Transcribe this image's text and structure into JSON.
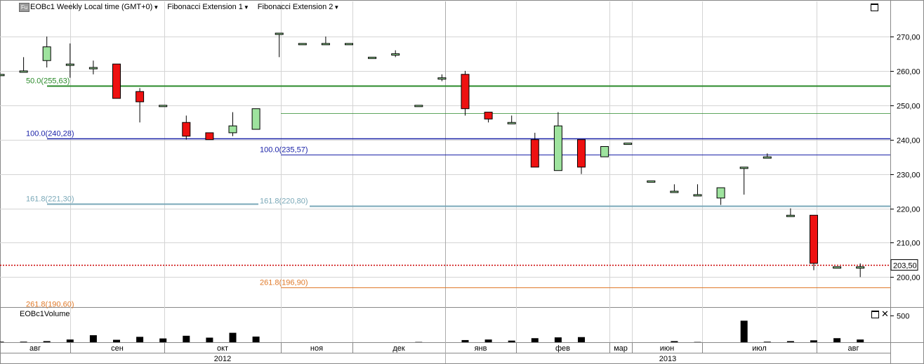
{
  "header": {
    "instrument_badge": "Fu",
    "title": "EOBc1 Weekly Local time (GMT+0)",
    "indicators": [
      "Fibonacci Extension 1",
      "Fibonacci Extension 2"
    ]
  },
  "volume_panel": {
    "title": "EOBc1Volume"
  },
  "colors": {
    "up_candle": "#9ee39e",
    "down_candle": "#ee1111",
    "fib_50": "#2a8a2a",
    "fib_100": "#1a22a8",
    "fib_161": "#7aa8b8",
    "fib_261": "#e07a2a",
    "last_price_line": "#cc0000",
    "grid": "#d4d4d4"
  },
  "chart_data": [
    {
      "type": "candlestick",
      "title": "EOBc1 Weekly Local time (GMT+0)",
      "ylim": [
        186,
        278
      ],
      "y_ticks": [
        "200,00",
        "210,00",
        "220,00",
        "230,00",
        "240,00",
        "250,00",
        "260,00",
        "270,00"
      ],
      "last_price": "203,50",
      "month_labels": [
        "авг",
        "сен",
        "окт",
        "ноя",
        "дек",
        "янв",
        "фев",
        "мар",
        "июн",
        "июл",
        "авг"
      ],
      "year_labels": [
        "2012",
        "2013"
      ],
      "candles": [
        {
          "o": 259,
          "h": 259,
          "l": 259,
          "c": 259
        },
        {
          "o": 260,
          "h": 264,
          "l": 260,
          "c": 260
        },
        {
          "o": 263,
          "h": 270,
          "l": 261,
          "c": 267
        },
        {
          "o": 262,
          "h": 268,
          "l": 258,
          "c": 262
        },
        {
          "o": 261,
          "h": 263,
          "l": 259,
          "c": 261
        },
        {
          "o": 262,
          "h": 262,
          "l": 252,
          "c": 252
        },
        {
          "o": 254,
          "h": 255,
          "l": 245,
          "c": 251
        },
        {
          "o": 250,
          "h": 250,
          "l": 250,
          "c": 250
        },
        {
          "o": 245,
          "h": 247,
          "l": 240,
          "c": 241
        },
        {
          "o": 242,
          "h": 242,
          "l": 240,
          "c": 240
        },
        {
          "o": 242,
          "h": 248,
          "l": 241,
          "c": 244
        },
        {
          "o": 243,
          "h": 249,
          "l": 243,
          "c": 249
        },
        {
          "o": 271,
          "h": 271,
          "l": 264,
          "c": 271
        },
        {
          "o": 268,
          "h": 268,
          "l": 268,
          "c": 268
        },
        {
          "o": 268,
          "h": 270,
          "l": 268,
          "c": 268
        },
        {
          "o": 268,
          "h": 268,
          "l": 268,
          "c": 268
        },
        {
          "o": 264,
          "h": 264,
          "l": 264,
          "c": 264
        },
        {
          "o": 265,
          "h": 266,
          "l": 264,
          "c": 265
        },
        {
          "o": 250,
          "h": 250,
          "l": 250,
          "c": 250
        },
        {
          "o": 258,
          "h": 259,
          "l": 257,
          "c": 258
        },
        {
          "o": 259,
          "h": 260,
          "l": 247,
          "c": 249
        },
        {
          "o": 248,
          "h": 248,
          "l": 245,
          "c": 246
        },
        {
          "o": 245,
          "h": 247,
          "l": 245,
          "c": 245
        },
        {
          "o": 240,
          "h": 242,
          "l": 232,
          "c": 232
        },
        {
          "o": 231,
          "h": 248,
          "l": 231,
          "c": 244
        },
        {
          "o": 240,
          "h": 240,
          "l": 230,
          "c": 232
        },
        {
          "o": 235,
          "h": 238,
          "l": 235,
          "c": 238
        },
        {
          "o": 239,
          "h": 239,
          "l": 239,
          "c": 239
        },
        {
          "o": 228,
          "h": 228,
          "l": 228,
          "c": 228
        },
        {
          "o": 225,
          "h": 227,
          "l": 225,
          "c": 225
        },
        {
          "o": 224,
          "h": 227,
          "l": 224,
          "c": 224
        },
        {
          "o": 223,
          "h": 226,
          "l": 221,
          "c": 226
        },
        {
          "o": 232,
          "h": 232,
          "l": 224,
          "c": 232
        },
        {
          "o": 235,
          "h": 236,
          "l": 235,
          "c": 235
        },
        {
          "o": 218,
          "h": 220,
          "l": 218,
          "c": 218
        },
        {
          "o": 218,
          "h": 218,
          "l": 202,
          "c": 204
        },
        {
          "o": 203,
          "h": 203,
          "l": 203,
          "c": 203
        },
        {
          "o": 203,
          "h": 204,
          "l": 200,
          "c": 203
        }
      ],
      "fib_levels": [
        {
          "label": "50.0(255,63)",
          "value": 255.63
        },
        {
          "label": "100.0(240,28)",
          "value": 240.28
        },
        {
          "label": "100.0(235,57)",
          "value": 235.57
        },
        {
          "label": "161.8(221,30)",
          "value": 221.3
        },
        {
          "label": "161.8(220,80)",
          "value": 220.8
        },
        {
          "label": "261.8(196,90)",
          "value": 196.9
        },
        {
          "label": "261.8(190,60)",
          "value": 190.6
        }
      ]
    },
    {
      "type": "bar",
      "title": "EOBc1Volume",
      "y_ticks": [
        "500"
      ],
      "ylim": [
        0,
        640
      ],
      "values": [
        10,
        10,
        20,
        50,
        130,
        45,
        100,
        70,
        120,
        85,
        175,
        105,
        0,
        0,
        0,
        0,
        0,
        0,
        5,
        0,
        40,
        50,
        30,
        75,
        90,
        95,
        0,
        0,
        0,
        20,
        5,
        0,
        400,
        10,
        20,
        35,
        75,
        50
      ]
    }
  ]
}
